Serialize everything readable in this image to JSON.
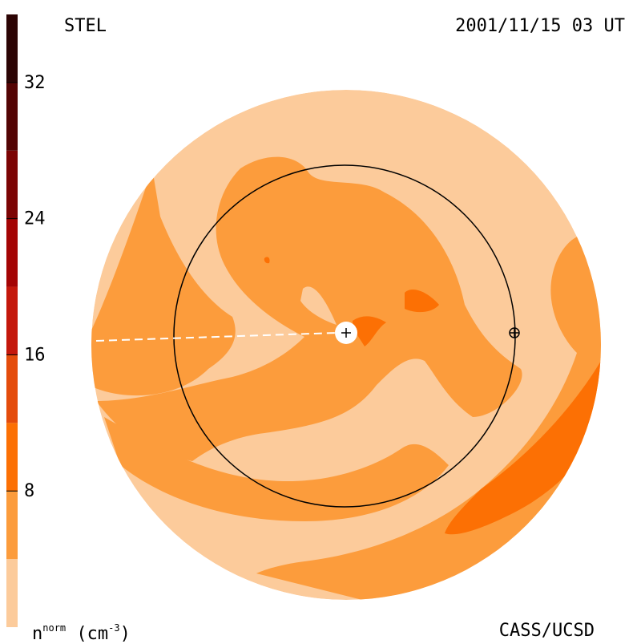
{
  "header": {
    "title": "STEL",
    "timestamp": "2001/11/15 03 UT"
  },
  "footer": {
    "credit": "CASS/UCSD",
    "unit_base": "n",
    "unit_sup": "norm",
    "unit_paren": "(cm",
    "unit_exp": "-3",
    "unit_close": ")"
  },
  "chart_data": {
    "type": "heatmap",
    "title": "STEL",
    "colorbar": {
      "label": "n^norm (cm^-3)",
      "range": [
        0,
        36
      ],
      "levels": [
        0,
        4,
        8,
        12,
        16,
        20,
        24,
        28,
        32,
        36
      ],
      "ticks": [
        "8",
        "16",
        "24",
        "32"
      ],
      "colors": [
        "#fccb9b",
        "#fc9c3c",
        "#fc7004",
        "#e44c0c",
        "#c4180c",
        "#a40404",
        "#7c0404",
        "#540404",
        "#2c0404"
      ]
    },
    "earth_orbit": "circle",
    "sun_marker": "+",
    "earth_marker": "⊕"
  }
}
